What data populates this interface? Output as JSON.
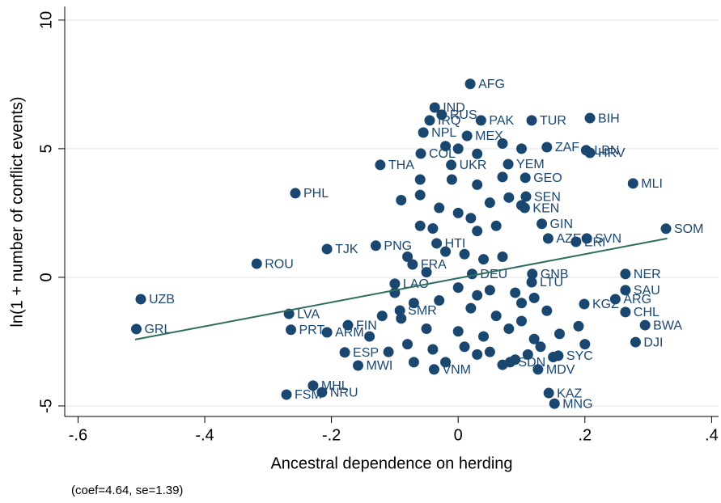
{
  "chart_data": {
    "type": "scatter",
    "x_label": "Ancestral dependence on herding",
    "y_label": "ln(1 + number of conflict events)",
    "note": "(coef=4.64, se=1.39)",
    "xlim": [
      -0.621,
      0.411
    ],
    "ylim": [
      -5.41,
      10.53
    ],
    "xticks": [
      {
        "value": -0.6,
        "label": "-.6"
      },
      {
        "value": -0.4,
        "label": "-.4"
      },
      {
        "value": -0.2,
        "label": "-.2"
      },
      0,
      {
        "value": 0.2,
        "label": ".2"
      },
      {
        "value": 0.4,
        "label": ".4"
      }
    ],
    "yticks": [
      -5,
      0,
      5,
      10
    ],
    "grid": true,
    "series": [
      {
        "color": "#1a476f",
        "labels": [
          "AFG",
          "IND",
          "RUS",
          "IRQ",
          "PAK",
          "TUR",
          "BIH",
          "NPL",
          "MEX",
          "COL",
          "ZAF",
          "LBN",
          "HRV",
          "THA",
          "UKR",
          "YEM",
          "MLI",
          "PHL",
          "GEO",
          "SEN",
          "KEN",
          "GIN",
          "SOM",
          "SVN",
          "AZE",
          "ERI",
          "TJK",
          "PNG",
          "HTI",
          "ROU",
          "FRA",
          "NER",
          "DEU",
          "GNB",
          "LAO",
          "LTU",
          "SAU",
          "UZB",
          "ARG",
          "KGZ",
          "CHL",
          "LVA",
          "BWA",
          "SMR",
          "GRL",
          "PRT",
          "ARM",
          "FIN",
          "DJI",
          "SYC",
          "ESP",
          "MWI",
          "VNM",
          "MDV",
          "SDN",
          "KAZ",
          "MNG",
          "MHL",
          "NRU",
          "FSM",
          null,
          null,
          null,
          null,
          null,
          null,
          null,
          null,
          null,
          null,
          null,
          null,
          null,
          null,
          null,
          null,
          null,
          null,
          null,
          null,
          null,
          null,
          null,
          null,
          null,
          null,
          null,
          null,
          null,
          null,
          null,
          null,
          null,
          null,
          null,
          null,
          null,
          null,
          null,
          null,
          null,
          null,
          null,
          null,
          null,
          null,
          null,
          null,
          null,
          null,
          null,
          null,
          null,
          null,
          null,
          null,
          null,
          null,
          null,
          null,
          null,
          null,
          null,
          null
        ],
        "x": [
          0.019,
          -0.037,
          -0.026,
          -0.045,
          0.036,
          0.116,
          0.208,
          -0.055,
          0.014,
          -0.059,
          0.14,
          0.202,
          0.208,
          -0.123,
          -0.011,
          0.079,
          0.276,
          -0.257,
          0.106,
          0.107,
          0.105,
          0.132,
          0.328,
          0.203,
          0.142,
          0.186,
          -0.207,
          -0.13,
          -0.034,
          -0.318,
          -0.072,
          0.264,
          0.022,
          0.117,
          -0.1,
          0.116,
          0.264,
          -0.501,
          0.248,
          0.199,
          0.264,
          -0.267,
          0.295,
          -0.092,
          -0.508,
          -0.264,
          -0.207,
          -0.174,
          0.28,
          0.158,
          -0.179,
          -0.158,
          -0.038,
          0.126,
          0.082,
          0.143,
          0.152,
          -0.229,
          -0.215,
          -0.271,
          -0.09,
          -0.06,
          -0.03,
          0.0,
          0.02,
          0.05,
          0.08,
          0.1,
          0.06,
          0.03,
          -0.04,
          -0.06,
          -0.02,
          0.01,
          0.04,
          0.07,
          -0.08,
          -0.05,
          0.0,
          0.05,
          0.09,
          0.12,
          -0.1,
          -0.07,
          -0.03,
          0.02,
          0.06,
          0.1,
          0.14,
          -0.09,
          -0.12,
          -0.05,
          0.0,
          0.04,
          0.08,
          0.12,
          0.16,
          -0.08,
          -0.04,
          0.01,
          0.05,
          0.09,
          -0.11,
          0.13,
          0.19,
          0.2,
          -0.14,
          -0.02,
          0.03,
          0.07,
          0.11,
          -0.07,
          0.15,
          0.1,
          0.03,
          -0.01,
          0.03,
          0.07,
          -0.06,
          0.0,
          0.03,
          0.07,
          0.1,
          -0.02
        ],
        "y": [
          7.52,
          6.6,
          6.32,
          6.1,
          6.1,
          6.1,
          6.19,
          5.63,
          5.5,
          4.81,
          5.06,
          4.94,
          4.84,
          4.37,
          4.37,
          4.4,
          3.65,
          3.27,
          3.87,
          3.14,
          2.7,
          2.08,
          1.89,
          1.51,
          1.51,
          1.38,
          1.1,
          1.23,
          1.32,
          0.53,
          0.5,
          0.13,
          0.13,
          0.13,
          -0.25,
          -0.19,
          -0.5,
          -0.85,
          -0.85,
          -1.04,
          -1.35,
          -1.42,
          -1.86,
          -1.29,
          -2.01,
          -2.04,
          -2.14,
          -1.86,
          -2.52,
          -3.05,
          -2.92,
          -3.43,
          -3.58,
          -3.58,
          -3.3,
          -4.5,
          -4.91,
          -4.21,
          -4.47,
          -4.56,
          3.0,
          3.2,
          2.7,
          2.5,
          2.3,
          2.9,
          3.1,
          2.8,
          2.0,
          1.8,
          1.9,
          2.0,
          1.0,
          0.9,
          0.7,
          0.8,
          0.8,
          0.2,
          -0.4,
          -0.5,
          -0.6,
          -0.8,
          -0.6,
          -1.0,
          -0.9,
          -1.2,
          -1.5,
          -1.7,
          -1.3,
          -1.6,
          -1.5,
          -2.0,
          -2.1,
          -2.3,
          -2.0,
          -2.4,
          -2.2,
          -2.6,
          -2.8,
          -2.7,
          -2.9,
          -3.2,
          -2.9,
          -2.7,
          -1.9,
          -2.6,
          -2.3,
          -3.3,
          -3.0,
          -3.4,
          -3.0,
          -3.3,
          -3.1,
          -1.0,
          -0.7,
          3.8,
          3.6,
          3.9,
          3.8,
          5.0,
          4.8,
          5.2,
          5.0,
          5.1
        ]
      }
    ],
    "fit": {
      "color": "#2e6e5e",
      "x": [
        -0.51,
        0.33
      ],
      "y": [
        -2.42,
        1.51
      ]
    }
  }
}
